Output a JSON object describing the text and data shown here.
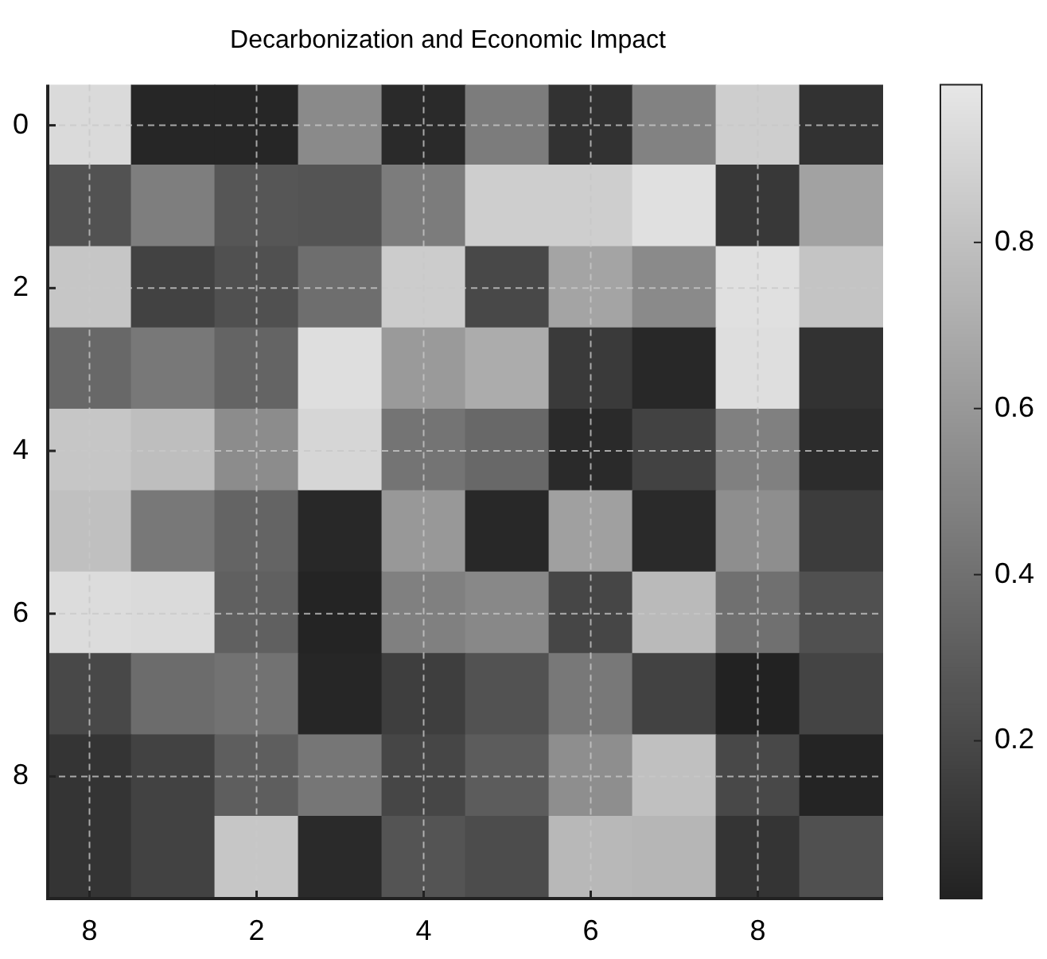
{
  "chart_data": {
    "type": "heatmap",
    "title": "Decarbonization and Economic Impact",
    "categories": [
      "8",
      null,
      "2",
      null,
      "4",
      null,
      "6",
      null,
      "8",
      null
    ],
    "y_categories": [
      "0",
      null,
      "2",
      null,
      "4",
      null,
      "6",
      null,
      "8",
      null
    ],
    "cells": [
      [
        0.93,
        0.03,
        0.03,
        0.53,
        0.05,
        0.46,
        0.09,
        0.49,
        0.87,
        0.09
      ],
      [
        0.25,
        0.47,
        0.27,
        0.26,
        0.46,
        0.87,
        0.87,
        0.96,
        0.12,
        0.65
      ],
      [
        0.83,
        0.17,
        0.24,
        0.39,
        0.86,
        0.2,
        0.66,
        0.53,
        0.96,
        0.82
      ],
      [
        0.36,
        0.44,
        0.34,
        0.95,
        0.61,
        0.7,
        0.13,
        0.04,
        0.95,
        0.09
      ],
      [
        0.83,
        0.79,
        0.54,
        0.91,
        0.42,
        0.36,
        0.05,
        0.17,
        0.48,
        0.06
      ],
      [
        0.8,
        0.44,
        0.34,
        0.04,
        0.6,
        0.04,
        0.64,
        0.05,
        0.55,
        0.14
      ],
      [
        0.94,
        0.93,
        0.32,
        0.02,
        0.48,
        0.52,
        0.19,
        0.77,
        0.4,
        0.24
      ],
      [
        0.2,
        0.38,
        0.41,
        0.03,
        0.15,
        0.25,
        0.44,
        0.17,
        0.01,
        0.18
      ],
      [
        0.1,
        0.17,
        0.31,
        0.43,
        0.19,
        0.3,
        0.55,
        0.8,
        0.2,
        0.02
      ],
      [
        0.1,
        0.17,
        0.83,
        0.05,
        0.26,
        0.22,
        0.76,
        0.75,
        0.1,
        0.24
      ]
    ],
    "clim": [
      0.01,
      0.99
    ],
    "cticks": [
      0.2,
      0.4,
      0.6,
      0.8
    ],
    "grid": true
  }
}
